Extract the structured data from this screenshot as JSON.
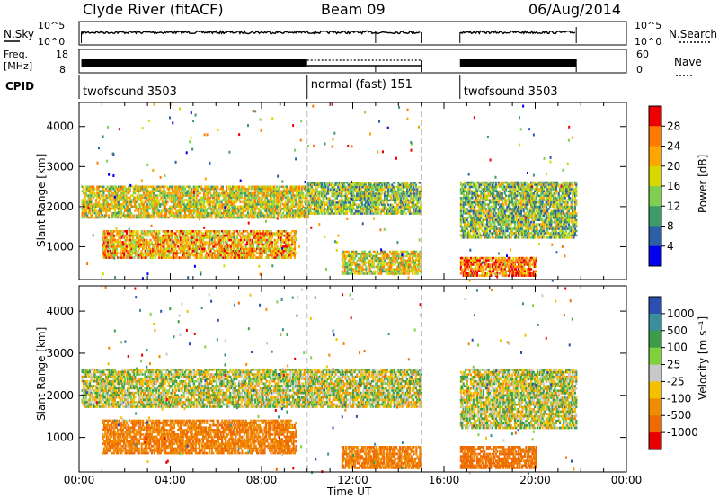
{
  "header": {
    "title": "Clyde River (fitACF)",
    "beam": "Beam 09",
    "date": "06/Aug/2014"
  },
  "strips": {
    "nsky_label": "N.Sky",
    "nsearch_label": "N.Search",
    "freq_label_1": "Freq.",
    "freq_label_2": "[MHz]",
    "nave_label": "Nave",
    "cpid_label": "CPID",
    "left_ticks_noise": [
      "10^5",
      "10^0"
    ],
    "right_ticks_noise": [
      "10^5",
      "10^0"
    ],
    "left_ticks_freq": [
      "18",
      "8"
    ],
    "right_ticks_nave": [
      "60",
      "0"
    ]
  },
  "cpid_segments": [
    {
      "label": "twofsound 3503",
      "start_h": 0.0,
      "end_h": 10.0
    },
    {
      "label": "normal (fast) 151",
      "start_h": 10.0,
      "end_h": 16.7
    },
    {
      "label": "twofsound 3503",
      "start_h": 16.7,
      "end_h": 24.0
    }
  ],
  "panels": {
    "power": {
      "colorbar_label": "Power [dB]",
      "colorbar_ticks": [
        "28",
        "24",
        "20",
        "16",
        "12",
        "8",
        "4"
      ],
      "colors": [
        "#ee0000",
        "#ff7a00",
        "#ffa500",
        "#d8d800",
        "#7fcf50",
        "#3f9a6a",
        "#2b5fa8",
        "#0000ee"
      ]
    },
    "velocity": {
      "colorbar_label": "Velocity [m s⁻¹]",
      "colorbar_ticks": [
        "1000",
        "500",
        "100",
        "25",
        "-25",
        "-100",
        "-500",
        "-1000"
      ],
      "colors": [
        "#2a4fb0",
        "#3a8f9a",
        "#3c9c48",
        "#7fd03c",
        "#c8c8c8",
        "#f5c000",
        "#f08c00",
        "#ef6a00",
        "#e80000"
      ]
    }
  },
  "axes": {
    "ylabel": "Slant Range [km]",
    "xlabel": "Time UT",
    "y_ticks": [
      "4000",
      "3000",
      "2000",
      "1000"
    ],
    "x_ticks": [
      "00:00",
      "04:00",
      "08:00",
      "12:00",
      "16:00",
      "20:00",
      "00:00"
    ]
  },
  "chart_data": {
    "type": "heatmap",
    "title": "Clyde River (fitACF)",
    "xlabel": "Time UT",
    "ylabel": "Slant Range [km]",
    "xlim_hours": [
      0,
      24
    ],
    "ylim_km": [
      180,
      4600
    ],
    "data_gaps_hours": [
      [
        15.0,
        16.7
      ],
      [
        21.8,
        24.0
      ]
    ],
    "power_bands": [
      {
        "t0": 0.1,
        "t1": 10.0,
        "r0": 1700,
        "r1": 2500,
        "level_db": 16
      },
      {
        "t0": 10.0,
        "t1": 15.0,
        "r0": 1800,
        "r1": 2600,
        "level_db": 12
      },
      {
        "t0": 1.0,
        "t1": 9.5,
        "r0": 700,
        "r1": 1400,
        "level_db": 20
      },
      {
        "t0": 11.5,
        "t1": 15.0,
        "r0": 300,
        "r1": 900,
        "level_db": 16
      },
      {
        "t0": 16.7,
        "t1": 21.8,
        "r0": 1200,
        "r1": 2600,
        "level_db": 12
      },
      {
        "t0": 16.7,
        "t1": 20.0,
        "r0": 250,
        "r1": 700,
        "level_db": 24
      }
    ],
    "velocity_bands": [
      {
        "t0": 0.1,
        "t1": 15.0,
        "r0": 1700,
        "r1": 2600,
        "v": 0
      },
      {
        "t0": 1.0,
        "t1": 9.5,
        "r0": 600,
        "r1": 1400,
        "v": -300
      },
      {
        "t0": 11.5,
        "t1": 15.0,
        "r0": 250,
        "r1": 800,
        "v": -300
      },
      {
        "t0": 16.7,
        "t1": 21.8,
        "r0": 1200,
        "r1": 2600,
        "v": 0
      },
      {
        "t0": 16.7,
        "t1": 20.0,
        "r0": 250,
        "r1": 800,
        "v": -400
      }
    ]
  }
}
